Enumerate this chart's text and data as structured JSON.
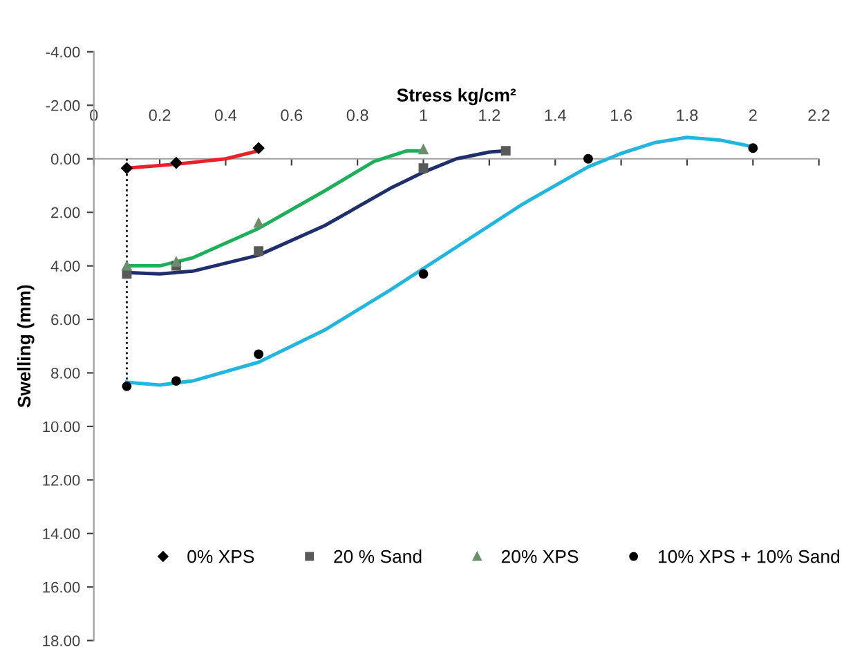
{
  "chart_data": {
    "type": "scatter",
    "xlabel": "Stress kg/cm²",
    "ylabel": "Swelling (mm)",
    "xlim": [
      0,
      2.2
    ],
    "xticks": [
      0,
      0.2,
      0.4,
      0.6,
      0.8,
      1,
      1.2,
      1.4,
      1.6,
      1.8,
      2,
      2.2
    ],
    "ylim": [
      18,
      -4
    ],
    "yticks": [
      {
        "value": -4,
        "label": "-4.00"
      },
      {
        "value": -2,
        "label": "-2.00"
      },
      {
        "value": 0,
        "label": "0.00"
      },
      {
        "value": 2,
        "label": "2.00"
      },
      {
        "value": 4,
        "label": "4.00"
      },
      {
        "value": 6,
        "label": "6.00"
      },
      {
        "value": 8,
        "label": "8.00"
      },
      {
        "value": 10,
        "label": "10.00"
      },
      {
        "value": 12,
        "label": "12.00"
      },
      {
        "value": 14,
        "label": "14.00"
      },
      {
        "value": 16,
        "label": "16.00"
      },
      {
        "value": 18,
        "label": "18.00"
      }
    ],
    "grid": false,
    "legend": "bottom",
    "series": [
      {
        "name": "0% XPS",
        "marker": "diamond",
        "color": "#000000",
        "x": [
          0.1,
          0.25,
          0.5
        ],
        "values": [
          0.35,
          0.15,
          -0.4
        ]
      },
      {
        "name": "20 % Sand",
        "marker": "square",
        "color": "#595959",
        "x": [
          0.1,
          0.25,
          0.5,
          1,
          1.25
        ],
        "values": [
          4.3,
          4.0,
          3.45,
          0.35,
          -0.3
        ]
      },
      {
        "name": "20% XPS",
        "marker": "triangle",
        "color": "#6b8e6b",
        "x": [
          0.1,
          0.25,
          0.5,
          1
        ],
        "values": [
          4.0,
          3.85,
          2.4,
          -0.35
        ]
      },
      {
        "name": "10% XPS + 10% Sand",
        "marker": "circle",
        "color": "#000000",
        "x": [
          0.1,
          0.25,
          0.5,
          1,
          1.5,
          2
        ],
        "values": [
          8.5,
          8.3,
          7.3,
          4.3,
          0.0,
          -0.4
        ]
      },
      {
        "type": "line",
        "marker": "none",
        "line_style": "solid",
        "color": "#e8212b",
        "x": [
          0.1,
          0.25,
          0.4,
          0.5
        ],
        "values": [
          0.35,
          0.2,
          0.0,
          -0.3
        ]
      },
      {
        "type": "line",
        "marker": "none",
        "line_style": "solid",
        "color": "#1f2f6b",
        "x": [
          0.1,
          0.2,
          0.3,
          0.5,
          0.7,
          0.9,
          1.0,
          1.1,
          1.2,
          1.25
        ],
        "values": [
          4.25,
          4.3,
          4.2,
          3.6,
          2.5,
          1.1,
          0.5,
          0.0,
          -0.25,
          -0.3
        ]
      },
      {
        "type": "line",
        "marker": "none",
        "line_style": "solid",
        "color": "#1fae5a",
        "x": [
          0.1,
          0.2,
          0.3,
          0.5,
          0.7,
          0.85,
          0.95,
          1.0
        ],
        "values": [
          4.0,
          4.0,
          3.7,
          2.6,
          1.2,
          0.1,
          -0.3,
          -0.3
        ]
      },
      {
        "type": "line",
        "marker": "none",
        "line_style": "solid",
        "color": "#22b5e0",
        "x": [
          0.1,
          0.2,
          0.3,
          0.5,
          0.7,
          0.9,
          1.1,
          1.3,
          1.5,
          1.6,
          1.7,
          1.8,
          1.9,
          2.0
        ],
        "values": [
          8.35,
          8.45,
          8.3,
          7.6,
          6.4,
          4.9,
          3.3,
          1.7,
          0.3,
          -0.2,
          -0.6,
          -0.8,
          -0.7,
          -0.45
        ]
      },
      {
        "type": "line",
        "marker": "none",
        "line_style": "dotted",
        "color": "#000000",
        "x": [
          0.1,
          0.1
        ],
        "values": [
          0,
          8.5
        ]
      }
    ]
  }
}
